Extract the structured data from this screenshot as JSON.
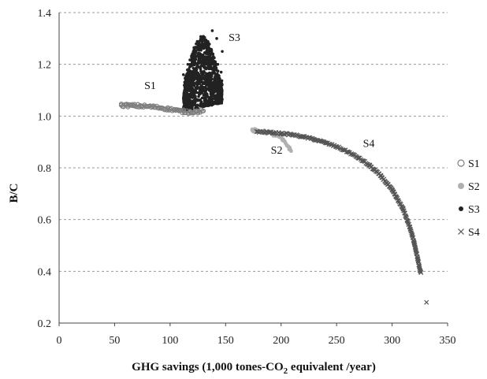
{
  "chart_data": {
    "type": "scatter",
    "title": "",
    "xlabel_main": "GHG savings (1,000 tones-CO",
    "xlabel_sub": "2",
    "xlabel_tail": " equivalent /year)",
    "ylabel": "B/C",
    "xlim": [
      0,
      350
    ],
    "ylim": [
      0.2,
      1.4
    ],
    "x_ticks": [
      "0",
      "50",
      "100",
      "150",
      "200",
      "250",
      "300",
      "350"
    ],
    "y_ticks": [
      "0.2",
      "0.4",
      "0.6",
      "0.8",
      "1.0",
      "1.2",
      "1.4"
    ],
    "grid": "horizontal dashed",
    "legend_position": "right",
    "series": [
      {
        "name": "S1",
        "marker": "open-circle",
        "color": "#7f7f7f",
        "points": [
          [
            56,
            1.042
          ],
          [
            62,
            1.041
          ],
          [
            68,
            1.04
          ],
          [
            74,
            1.039
          ],
          [
            80,
            1.037
          ],
          [
            86,
            1.035
          ],
          [
            92,
            1.032
          ],
          [
            98,
            1.028
          ],
          [
            104,
            1.024
          ],
          [
            108,
            1.02
          ],
          [
            112,
            1.018
          ],
          [
            118,
            1.016
          ],
          [
            124,
            1.017
          ],
          [
            130,
            1.02
          ]
        ]
      },
      {
        "name": "S2",
        "marker": "filled-circle",
        "color": "#b0b0b0",
        "points": [
          [
            174,
            0.945
          ],
          [
            180,
            0.943
          ],
          [
            186,
            0.938
          ],
          [
            192,
            0.93
          ],
          [
            198,
            0.92
          ],
          [
            202,
            0.905
          ],
          [
            206,
            0.885
          ],
          [
            209,
            0.865
          ]
        ]
      },
      {
        "name": "S3",
        "marker": "filled-dot",
        "color": "#222222",
        "points": [
          [
            112,
            1.16
          ],
          [
            114,
            1.05
          ],
          [
            116,
            1.2
          ],
          [
            118,
            1.04
          ],
          [
            119,
            1.12
          ],
          [
            120,
            1.24
          ],
          [
            122,
            1.08
          ],
          [
            124,
            1.18
          ],
          [
            125,
            1.03
          ],
          [
            126,
            1.22
          ],
          [
            128,
            1.1
          ],
          [
            129,
            1.27
          ],
          [
            130,
            1.15
          ],
          [
            131,
            1.05
          ],
          [
            132,
            1.21
          ],
          [
            134,
            1.12
          ],
          [
            135,
            1.28
          ],
          [
            136,
            1.19
          ],
          [
            137,
            1.08
          ],
          [
            138,
            1.33
          ],
          [
            139,
            1.23
          ],
          [
            140,
            1.14
          ],
          [
            142,
            1.3
          ],
          [
            143,
            1.2
          ],
          [
            144,
            1.1
          ],
          [
            146,
            1.17
          ],
          [
            147,
            1.25
          ]
        ]
      },
      {
        "name": "S4",
        "marker": "x",
        "color": "#555555",
        "points": [
          [
            178,
            0.94
          ],
          [
            190,
            0.937
          ],
          [
            200,
            0.933
          ],
          [
            210,
            0.928
          ],
          [
            220,
            0.92
          ],
          [
            230,
            0.91
          ],
          [
            240,
            0.897
          ],
          [
            250,
            0.882
          ],
          [
            260,
            0.862
          ],
          [
            270,
            0.838
          ],
          [
            280,
            0.808
          ],
          [
            290,
            0.768
          ],
          [
            300,
            0.715
          ],
          [
            310,
            0.64
          ],
          [
            316,
            0.57
          ],
          [
            320,
            0.51
          ],
          [
            323,
            0.45
          ],
          [
            325,
            0.405
          ],
          [
            326,
            0.395
          ],
          [
            331,
            0.28
          ]
        ]
      }
    ],
    "annotations": [
      {
        "text": "S1",
        "x": 82,
        "y": 1.105
      },
      {
        "text": "S3",
        "x": 158,
        "y": 1.29
      },
      {
        "text": "S2",
        "x": 196,
        "y": 0.855
      },
      {
        "text": "S4",
        "x": 279,
        "y": 0.88
      }
    ]
  }
}
